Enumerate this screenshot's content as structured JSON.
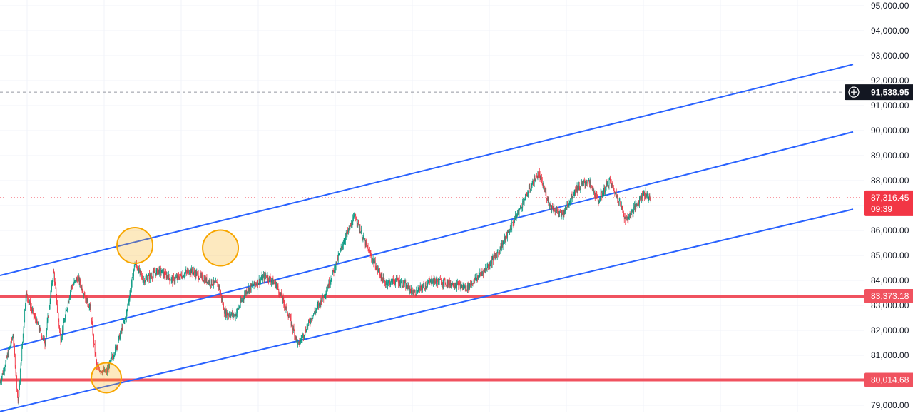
{
  "chart_data": {
    "type": "candlestick",
    "y_axis": {
      "range": [
        78750,
        95150
      ],
      "ticks": [
        "79,000.00",
        "80,000.00",
        "81,000.00",
        "82,000.00",
        "83,000.00",
        "84,000.00",
        "85,000.00",
        "86,000.00",
        "87,000.00",
        "88,000.00",
        "89,000.00",
        "90,000.00",
        "91,000.00",
        "92,000.00",
        "93,000.00",
        "94,000.00",
        "95,000.00"
      ],
      "tick_values": [
        79000,
        80000,
        81000,
        82000,
        83000,
        84000,
        85000,
        86000,
        87000,
        88000,
        89000,
        90000,
        91000,
        92000,
        93000,
        94000,
        95000
      ]
    },
    "grid": true,
    "crosshair": {
      "value": 91538.95,
      "label": "91,538.95",
      "icon": "plus-circle-icon"
    },
    "last_price": {
      "value": 87316.45,
      "label": "87,316.45",
      "countdown": "09:39",
      "color": "#f23645"
    },
    "horizontal_levels": [
      {
        "value": 83373.18,
        "label": "83,373.18",
        "color": "#f0525f"
      },
      {
        "value": 80014.68,
        "label": "80,014.68",
        "color": "#f0525f"
      }
    ],
    "channel_lines": {
      "color": "#2962ff",
      "lines": [
        {
          "name": "upper",
          "start": [
            0,
            84200
          ],
          "end": [
            100,
            92650
          ]
        },
        {
          "name": "middle",
          "start": [
            0,
            81200
          ],
          "end": [
            100,
            89950
          ]
        },
        {
          "name": "lower",
          "start": [
            0,
            78750
          ],
          "end": [
            100,
            86850
          ]
        }
      ]
    },
    "touch_markers": {
      "color": "#f7a600",
      "fill": "rgba(247,166,0,0.25)",
      "points": [
        {
          "x": 15.6,
          "y": 85400
        },
        {
          "x": 25.5,
          "y": 85300
        },
        {
          "x": 12.3,
          "y": 80100
        }
      ]
    },
    "price_path": {
      "up_color": "#089981",
      "down_color": "#f23645",
      "x_range": [
        0,
        75.3
      ],
      "waypoints": [
        [
          0.0,
          79900
        ],
        [
          1.5,
          81800
        ],
        [
          2.1,
          79100
        ],
        [
          3.0,
          83500
        ],
        [
          4.0,
          82500
        ],
        [
          5.2,
          81500
        ],
        [
          6.2,
          84400
        ],
        [
          7.0,
          81600
        ],
        [
          8.2,
          83700
        ],
        [
          9.0,
          84100
        ],
        [
          10.4,
          82900
        ],
        [
          11.2,
          80500
        ],
        [
          12.3,
          80300
        ],
        [
          13.5,
          81400
        ],
        [
          14.6,
          82600
        ],
        [
          15.6,
          84700
        ],
        [
          16.6,
          84000
        ],
        [
          18.4,
          84400
        ],
        [
          20.0,
          84000
        ],
        [
          22.0,
          84400
        ],
        [
          23.8,
          84000
        ],
        [
          25.3,
          83800
        ],
        [
          26.0,
          82700
        ],
        [
          27.2,
          82600
        ],
        [
          28.5,
          83600
        ],
        [
          30.8,
          84200
        ],
        [
          32.0,
          83800
        ],
        [
          33.5,
          82500
        ],
        [
          34.5,
          81400
        ],
        [
          36.0,
          82500
        ],
        [
          37.5,
          83400
        ],
        [
          38.5,
          84300
        ],
        [
          39.8,
          85600
        ],
        [
          41.1,
          86600
        ],
        [
          42.1,
          85600
        ],
        [
          43.0,
          84900
        ],
        [
          44.5,
          83900
        ],
        [
          46.0,
          84000
        ],
        [
          48.0,
          83500
        ],
        [
          50.0,
          84000
        ],
        [
          52.0,
          83900
        ],
        [
          54.0,
          83700
        ],
        [
          56.0,
          84400
        ],
        [
          57.6,
          85100
        ],
        [
          59.5,
          86400
        ],
        [
          61.0,
          87500
        ],
        [
          62.3,
          88300
        ],
        [
          63.6,
          87000
        ],
        [
          65.0,
          86600
        ],
        [
          66.5,
          87600
        ],
        [
          68.0,
          88000
        ],
        [
          69.2,
          87200
        ],
        [
          70.5,
          88000
        ],
        [
          71.6,
          87200
        ],
        [
          72.4,
          86400
        ],
        [
          73.4,
          86900
        ],
        [
          74.4,
          87500
        ],
        [
          75.3,
          87300
        ]
      ]
    }
  }
}
